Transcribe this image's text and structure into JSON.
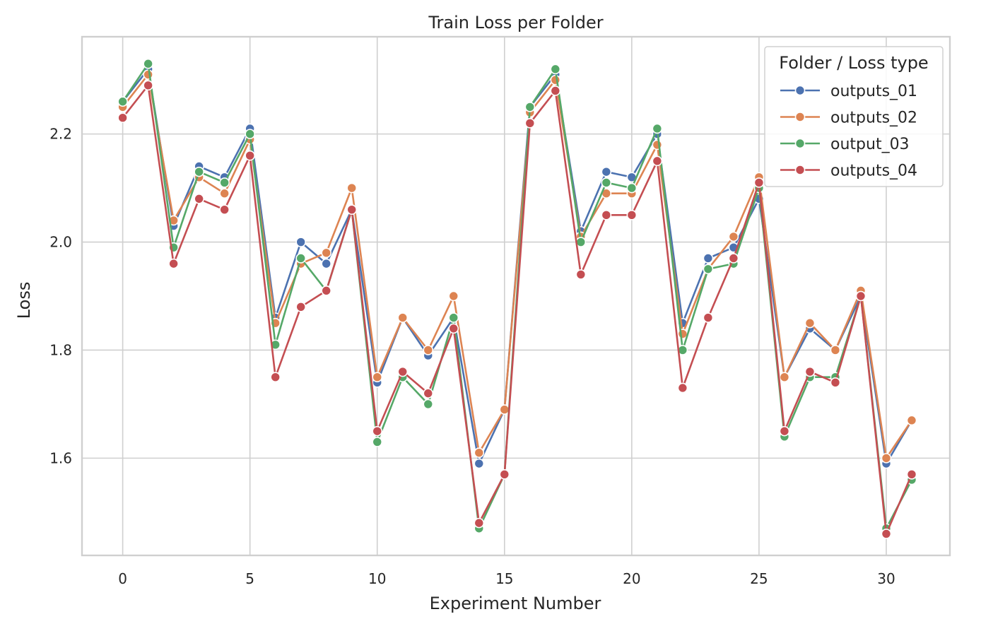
{
  "chart_data": {
    "type": "line",
    "title": "Train Loss per Folder",
    "xlabel": "Experiment Number",
    "ylabel": "Loss",
    "xlim": [
      -1.6,
      32.5
    ],
    "ylim": [
      1.42,
      2.38
    ],
    "xticks": [
      0,
      5,
      10,
      15,
      20,
      25,
      30
    ],
    "yticks": [
      1.6,
      1.8,
      2.0,
      2.2
    ],
    "ytick_labels": [
      "1.6",
      "1.8",
      "2.0",
      "2.2"
    ],
    "grid": true,
    "legend": {
      "title": "Folder / Loss type",
      "position": "top-right"
    },
    "x": [
      0,
      1,
      2,
      3,
      4,
      5,
      6,
      7,
      8,
      9,
      10,
      11,
      12,
      13,
      14,
      15,
      16,
      17,
      18,
      19,
      20,
      21,
      22,
      23,
      24,
      25,
      26,
      27,
      28,
      29,
      30,
      31
    ],
    "series": [
      {
        "name": "outputs_01",
        "color": "#4c72b0",
        "values": [
          2.26,
          2.32,
          2.03,
          2.14,
          2.12,
          2.21,
          1.86,
          2.0,
          1.96,
          2.06,
          1.74,
          1.86,
          1.79,
          1.86,
          1.59,
          1.69,
          2.25,
          2.31,
          2.02,
          2.13,
          2.12,
          2.2,
          1.85,
          1.97,
          1.99,
          2.08,
          1.75,
          1.84,
          1.8,
          1.9,
          1.59,
          1.67
        ]
      },
      {
        "name": "outputs_02",
        "color": "#dd8452",
        "values": [
          2.25,
          2.31,
          2.04,
          2.12,
          2.09,
          2.19,
          1.85,
          1.96,
          1.98,
          2.1,
          1.75,
          1.86,
          1.8,
          1.9,
          1.61,
          1.69,
          2.24,
          2.3,
          2.01,
          2.09,
          2.09,
          2.18,
          1.83,
          1.95,
          2.01,
          2.12,
          1.75,
          1.85,
          1.8,
          1.91,
          1.6,
          1.67
        ]
      },
      {
        "name": "output_03",
        "color": "#55a868",
        "values": [
          2.26,
          2.33,
          1.99,
          2.13,
          2.11,
          2.2,
          1.81,
          1.97,
          1.91,
          2.06,
          1.63,
          1.75,
          1.7,
          1.86,
          1.47,
          1.57,
          2.25,
          2.32,
          2.0,
          2.11,
          2.1,
          2.21,
          1.8,
          1.95,
          1.96,
          2.1,
          1.64,
          1.75,
          1.75,
          1.9,
          1.47,
          1.56
        ]
      },
      {
        "name": "outputs_04",
        "color": "#c44e52",
        "values": [
          2.23,
          2.29,
          1.96,
          2.08,
          2.06,
          2.16,
          1.75,
          1.88,
          1.91,
          2.06,
          1.65,
          1.76,
          1.72,
          1.84,
          1.48,
          1.57,
          2.22,
          2.28,
          1.94,
          2.05,
          2.05,
          2.15,
          1.73,
          1.86,
          1.97,
          2.11,
          1.65,
          1.76,
          1.74,
          1.9,
          1.46,
          1.57
        ]
      }
    ]
  }
}
